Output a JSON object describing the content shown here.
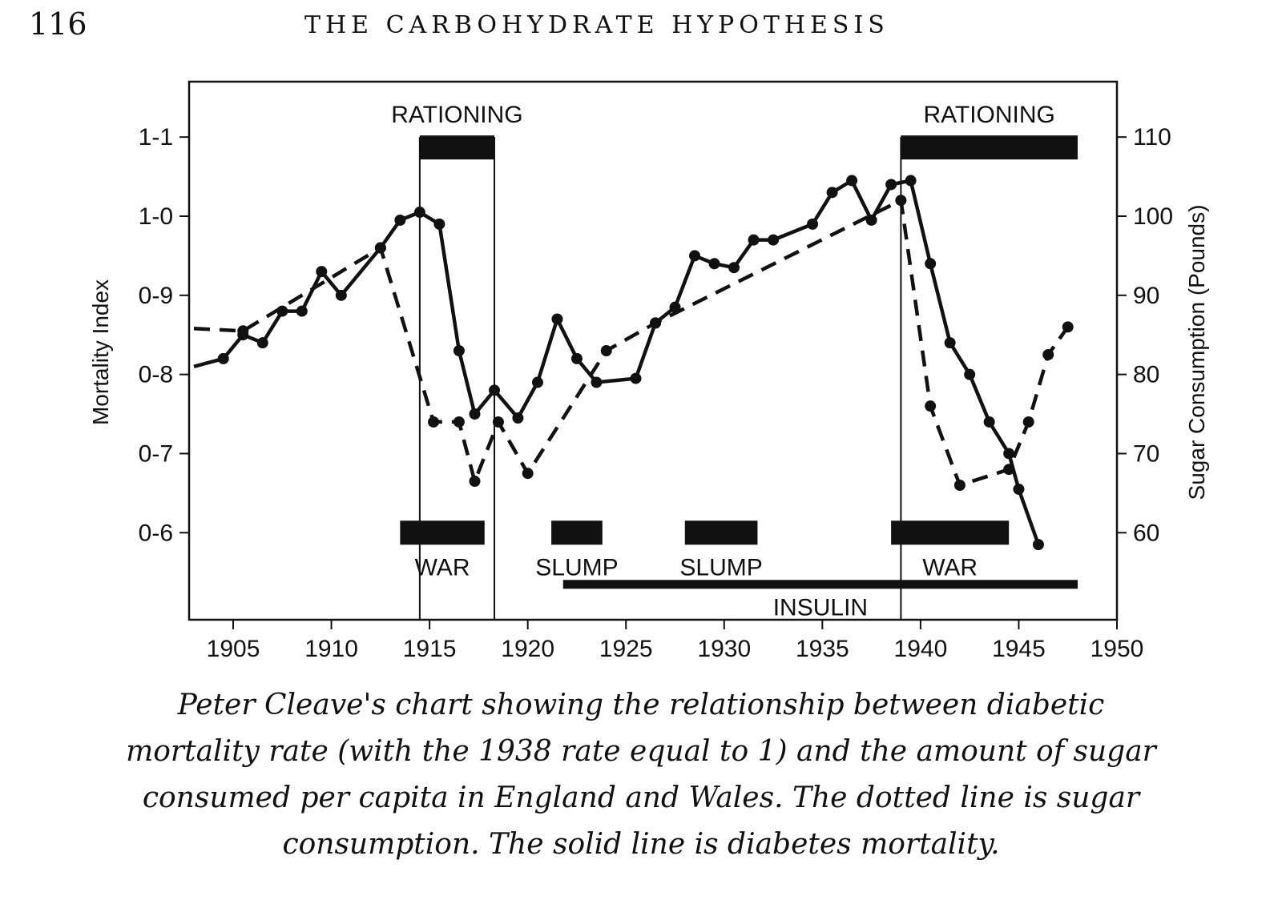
{
  "page": {
    "page_number": "116",
    "running_head": "THE CARBOHYDRATE HYPOTHESIS",
    "caption": "Peter Cleave's chart showing the relationship between diabetic mortality rate (with the 1938 rate equal to 1) and the amount of sugar consumed per capita in England and Wales. The dotted line is sugar consumption. The solid line is diabetes mortality."
  },
  "chart_data": {
    "type": "line",
    "title": "",
    "xlabel": "",
    "ylabel": "Mortality Index",
    "y2label": "Sugar Consumption (Pounds)",
    "xlim": [
      1903,
      1950
    ],
    "ylim": [
      0.49,
      1.17
    ],
    "y2lim": [
      49,
      117
    ],
    "x_ticks": [
      1905,
      1910,
      1915,
      1920,
      1925,
      1930,
      1935,
      1940,
      1945,
      1950
    ],
    "y_ticks": [
      {
        "value": 1.1,
        "label": "1-1"
      },
      {
        "value": 1.0,
        "label": "1-0"
      },
      {
        "value": 0.9,
        "label": "0-9"
      },
      {
        "value": 0.8,
        "label": "0-8"
      },
      {
        "value": 0.7,
        "label": "0-7"
      },
      {
        "value": 0.6,
        "label": "0-6"
      }
    ],
    "y2_ticks": [
      110,
      100,
      90,
      80,
      70,
      60
    ],
    "grid": false,
    "series": [
      {
        "name": "diabetes mortality",
        "style": "solid",
        "axis": "left",
        "color": "#111111",
        "points": [
          [
            1903,
            0.81
          ],
          [
            1904.5,
            0.82
          ],
          [
            1905.5,
            0.85
          ],
          [
            1906.5,
            0.84
          ],
          [
            1907.5,
            0.88
          ],
          [
            1908.5,
            0.88
          ],
          [
            1909.5,
            0.93
          ],
          [
            1910.5,
            0.9
          ],
          [
            1912.5,
            0.96
          ],
          [
            1913.5,
            0.995
          ],
          [
            1914.5,
            1.005
          ],
          [
            1915.5,
            0.99
          ],
          [
            1916.5,
            0.83
          ],
          [
            1917.3,
            0.75
          ],
          [
            1918.3,
            0.78
          ],
          [
            1919.5,
            0.745
          ],
          [
            1920.5,
            0.79
          ],
          [
            1921.5,
            0.87
          ],
          [
            1922.5,
            0.82
          ],
          [
            1923.5,
            0.79
          ],
          [
            1925.5,
            0.795
          ],
          [
            1926.5,
            0.865
          ],
          [
            1927.5,
            0.885
          ],
          [
            1928.5,
            0.95
          ],
          [
            1929.5,
            0.94
          ],
          [
            1930.5,
            0.935
          ],
          [
            1931.5,
            0.97
          ],
          [
            1932.5,
            0.97
          ],
          [
            1934.5,
            0.99
          ],
          [
            1935.5,
            1.03
          ],
          [
            1936.5,
            1.045
          ],
          [
            1937.5,
            0.995
          ],
          [
            1938.5,
            1.04
          ],
          [
            1939.5,
            1.045
          ],
          [
            1940.5,
            0.94
          ],
          [
            1941.5,
            0.84
          ],
          [
            1942.5,
            0.8
          ],
          [
            1943.5,
            0.74
          ],
          [
            1944.5,
            0.7
          ],
          [
            1945.0,
            0.655
          ],
          [
            1946.0,
            0.585
          ]
        ]
      },
      {
        "name": "sugar consumption",
        "style": "dashed",
        "axis": "right",
        "color": "#111111",
        "marker_points": [
          [
            1905.5,
            85.5
          ],
          [
            1912.5,
            96
          ],
          [
            1915.2,
            74
          ],
          [
            1916.5,
            74
          ],
          [
            1917.3,
            66.5
          ],
          [
            1918.5,
            74
          ],
          [
            1920,
            67.5
          ],
          [
            1924,
            83
          ],
          [
            1926.5,
            86.5
          ],
          [
            1939,
            102
          ],
          [
            1940.5,
            76
          ],
          [
            1942,
            66
          ],
          [
            1944.5,
            68
          ],
          [
            1945.5,
            74
          ],
          [
            1946.5,
            82.5
          ],
          [
            1947.5,
            86
          ]
        ],
        "points": [
          [
            1903,
            85.8
          ],
          [
            1905.5,
            85.5
          ],
          [
            1912.5,
            96
          ],
          [
            1915.2,
            74
          ],
          [
            1916.5,
            74
          ],
          [
            1917.3,
            66.5
          ],
          [
            1918.5,
            74
          ],
          [
            1920,
            67.5
          ],
          [
            1924,
            83
          ],
          [
            1926.5,
            86.5
          ],
          [
            1939,
            102
          ],
          [
            1940.5,
            76
          ],
          [
            1942,
            66
          ],
          [
            1944.5,
            68
          ],
          [
            1945.5,
            74
          ],
          [
            1946.5,
            82.5
          ],
          [
            1947.5,
            86
          ]
        ]
      }
    ],
    "annotations": {
      "rationing": [
        {
          "label": "RATIONING",
          "start": 1914.5,
          "end": 1918.3
        },
        {
          "label": "RATIONING",
          "start": 1939.0,
          "end": 1948.0
        }
      ],
      "events": [
        {
          "label": "WAR",
          "start": 1913.5,
          "end": 1917.8
        },
        {
          "label": "SLUMP",
          "start": 1921.2,
          "end": 1923.8
        },
        {
          "label": "SLUMP",
          "start": 1928.0,
          "end": 1931.7
        },
        {
          "label": "WAR",
          "start": 1938.5,
          "end": 1944.5
        }
      ],
      "insulin": {
        "label": "INSULIN",
        "start": 1921.8,
        "end": 1948.0
      },
      "vertical_lines": [
        1914.5,
        1918.3,
        1939.0
      ]
    }
  }
}
